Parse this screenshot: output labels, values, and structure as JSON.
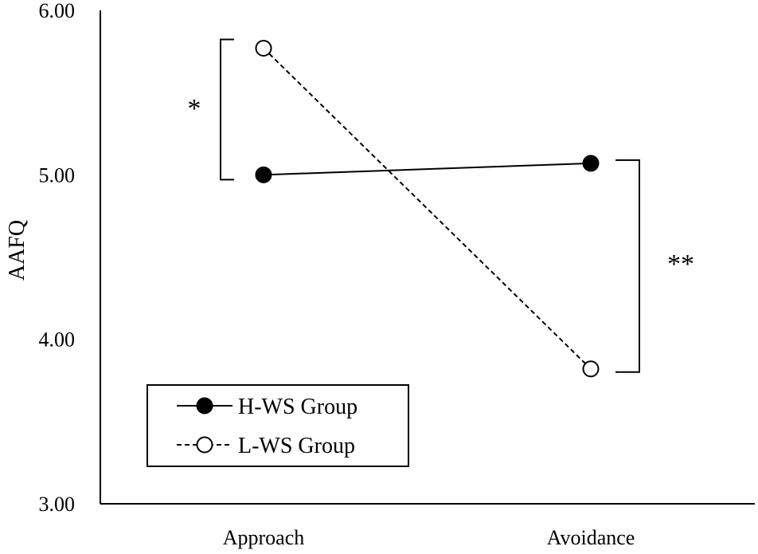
{
  "chart_data": {
    "type": "line",
    "title": "",
    "xlabel": "",
    "ylabel": "AAFQ",
    "categories": [
      "Approach",
      "Avoidance"
    ],
    "ylim": [
      3.0,
      6.0
    ],
    "yticks": [
      "3.00",
      "4.00",
      "5.00",
      "6.00"
    ],
    "grid": false,
    "legend_position": "bottom-left",
    "series": [
      {
        "name": "H-WS Group",
        "values": [
          5.0,
          5.07
        ],
        "line_style": "solid",
        "marker": "filled-circle",
        "color": "#000000"
      },
      {
        "name": "L-WS Group",
        "values": [
          5.77,
          3.82
        ],
        "line_style": "dashed",
        "marker": "open-circle",
        "color": "#000000"
      }
    ],
    "annotations": [
      {
        "text": "*",
        "category": "Approach",
        "range": [
          5.0,
          5.77
        ]
      },
      {
        "text": "**",
        "category": "Avoidance",
        "range": [
          3.82,
          5.07
        ]
      }
    ]
  }
}
